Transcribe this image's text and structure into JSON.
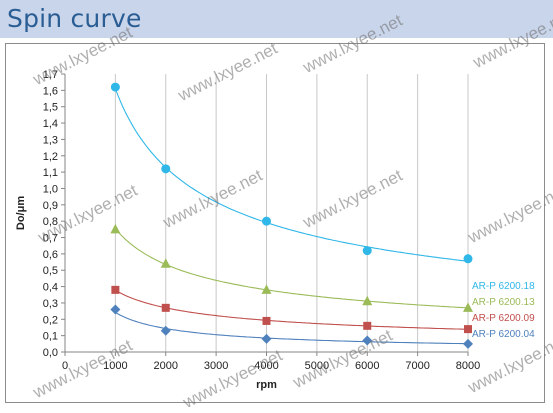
{
  "header": {
    "title": "Spin curve"
  },
  "watermark_text": "www.lxyee.net",
  "chart_data": {
    "type": "scatter",
    "xlabel": "rpm",
    "ylabel": "Do/μm",
    "xlim": [
      0,
      8000
    ],
    "ylim": [
      0,
      1.7
    ],
    "x_ticks": [
      "0",
      "1000",
      "2000",
      "3000",
      "4000",
      "5000",
      "6000",
      "7000",
      "8000"
    ],
    "y_ticks": [
      "0,0",
      "0,1",
      "0,2",
      "0,3",
      "0,4",
      "0,5",
      "0,6",
      "0,7",
      "0,8",
      "0,9",
      "1,0",
      "1,1",
      "1,2",
      "1,3",
      "1,4",
      "1,5",
      "1,6",
      "1,7"
    ],
    "grid": "vertical",
    "legend_position": "right",
    "series": [
      {
        "name": "AR-P 6200.18",
        "color": "#2fb7e8",
        "marker": "circle",
        "x": [
          1000,
          2000,
          4000,
          6000,
          8000
        ],
        "y": [
          1.62,
          1.12,
          0.8,
          0.62,
          0.57
        ]
      },
      {
        "name": "AR-P 6200.13",
        "color": "#9bbb59",
        "marker": "triangle",
        "x": [
          1000,
          2000,
          4000,
          6000,
          8000
        ],
        "y": [
          0.75,
          0.54,
          0.38,
          0.31,
          0.27
        ]
      },
      {
        "name": "AR-P 6200.09",
        "color": "#c0504d",
        "marker": "square",
        "x": [
          1000,
          2000,
          4000,
          6000,
          8000
        ],
        "y": [
          0.38,
          0.27,
          0.19,
          0.16,
          0.14
        ]
      },
      {
        "name": "AR-P 6200.04",
        "color": "#4f81bd",
        "marker": "diamond",
        "x": [
          1000,
          2000,
          4000,
          6000,
          8000
        ],
        "y": [
          0.26,
          0.13,
          0.08,
          0.07,
          0.05
        ]
      }
    ]
  }
}
